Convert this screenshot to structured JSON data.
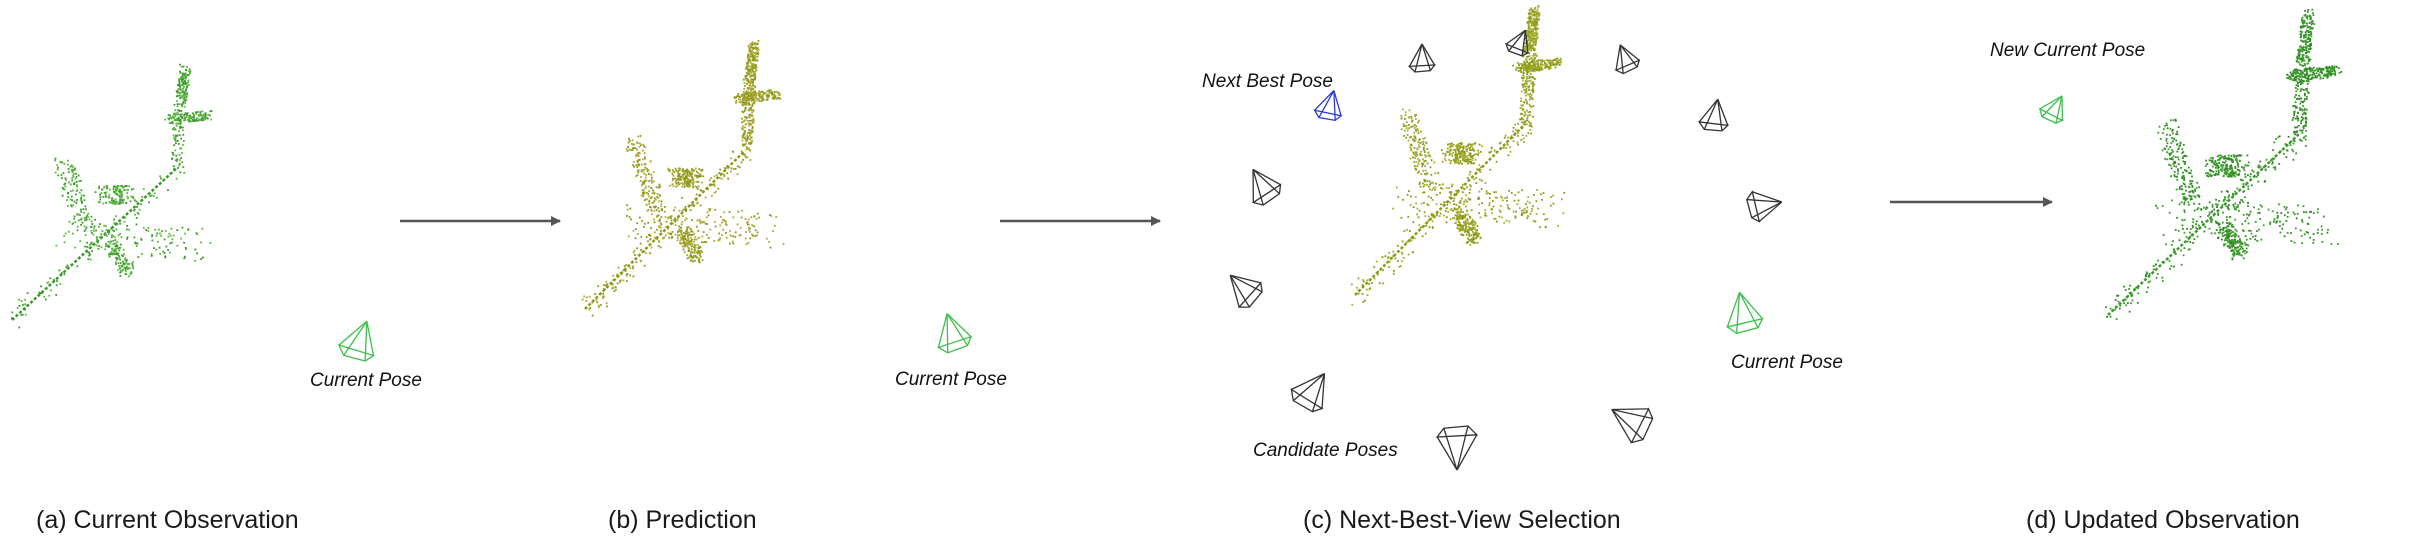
{
  "panels": [
    {
      "caption": "(a) Current Observation"
    },
    {
      "caption": "(b) Prediction"
    },
    {
      "caption": "(c) Next-Best-View Selection"
    },
    {
      "caption": "(d) Updated Observation"
    }
  ],
  "annotations": {
    "current_pose_a": "Current Pose",
    "current_pose_b": "Current Pose",
    "current_pose_c": "Current Pose",
    "next_best_pose": "Next Best Pose",
    "candidate_poses": "Candidate Poses",
    "new_current_pose": "New Current Pose"
  },
  "colors": {
    "observed_points": "#3a9a2a",
    "predicted_points": "#8a9a18",
    "current_pose_camera": "#3cc04a",
    "next_best_camera": "#2a3ad8",
    "candidate_camera": "#333333",
    "arrow": "#555555"
  }
}
